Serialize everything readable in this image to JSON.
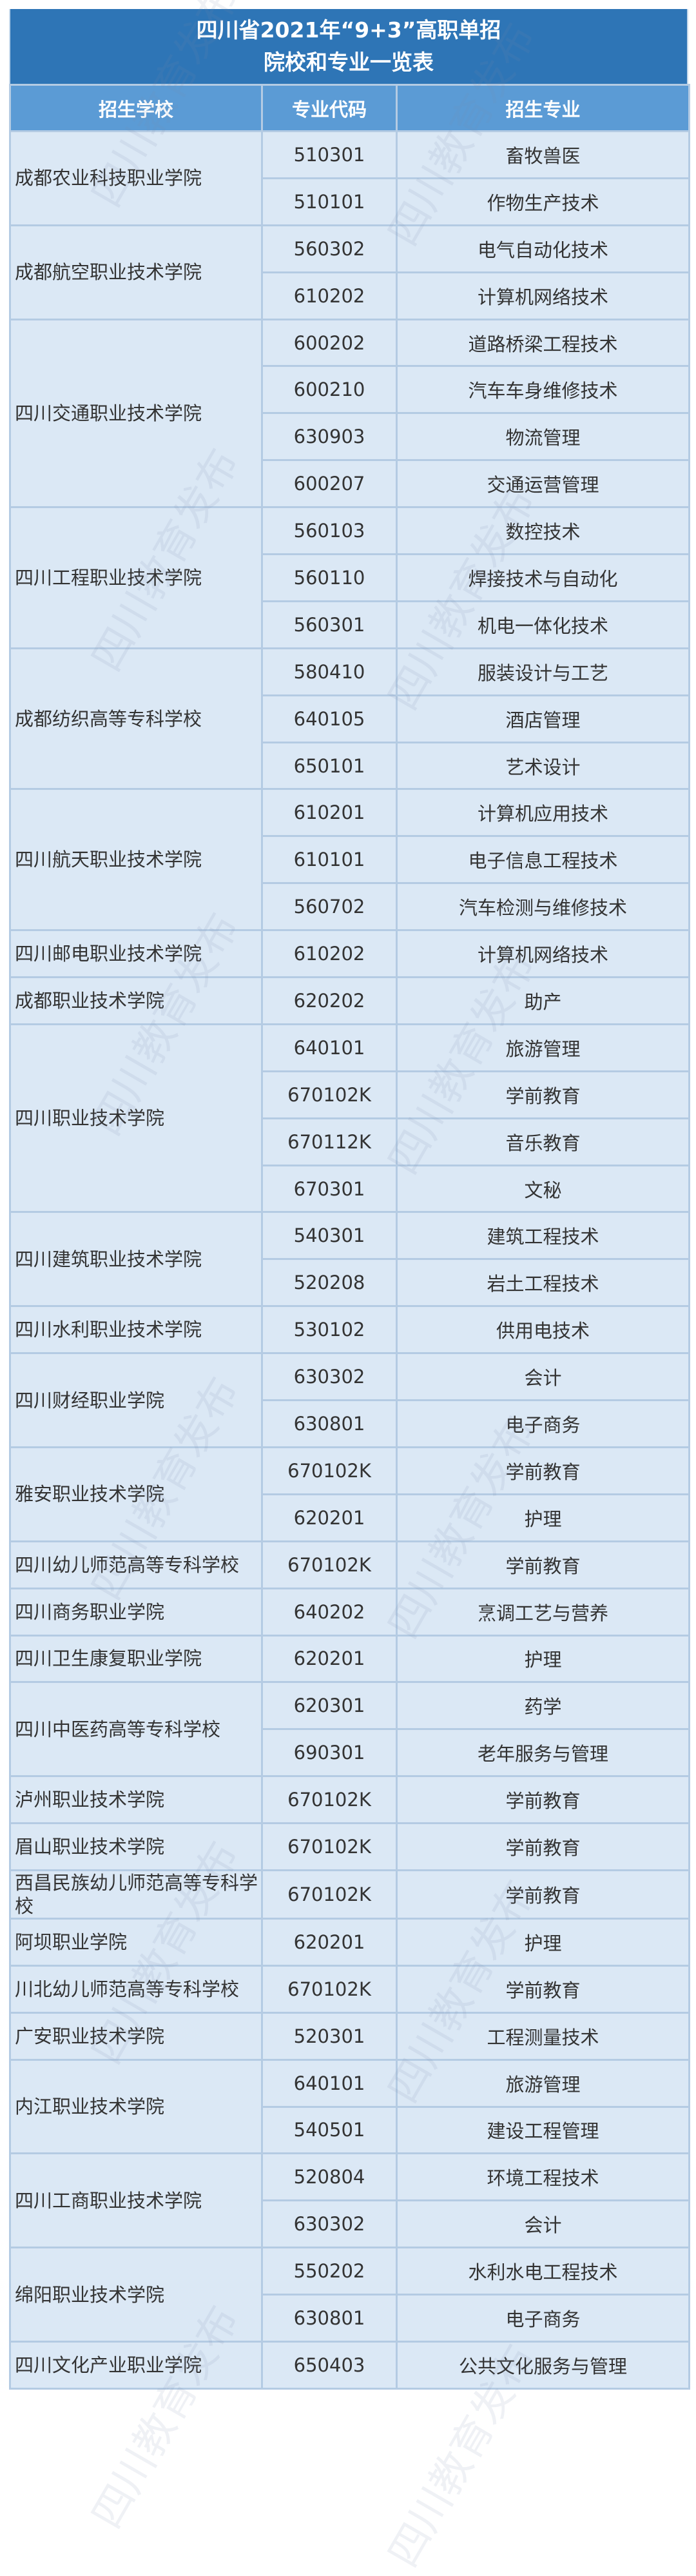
{
  "title": {
    "line1": "四川省2021年“9+3”高职单招",
    "line2": "院校和专业一览表"
  },
  "columns": [
    "招生学校",
    "专业代码",
    "招生专业"
  ],
  "watermark": "四川教育发布",
  "schools": [
    {
      "name": "成都农业科技职业学院",
      "majors": [
        [
          "510301",
          "畜牧兽医"
        ],
        [
          "510101",
          "作物生产技术"
        ]
      ]
    },
    {
      "name": "成都航空职业技术学院",
      "majors": [
        [
          "560302",
          "电气自动化技术"
        ],
        [
          "610202",
          "计算机网络技术"
        ]
      ]
    },
    {
      "name": "四川交通职业技术学院",
      "majors": [
        [
          "600202",
          "道路桥梁工程技术"
        ],
        [
          "600210",
          "汽车车身维修技术"
        ],
        [
          "630903",
          "物流管理"
        ],
        [
          "600207",
          "交通运营管理"
        ]
      ]
    },
    {
      "name": "四川工程职业技术学院",
      "majors": [
        [
          "560103",
          "数控技术"
        ],
        [
          "560110",
          "焊接技术与自动化"
        ],
        [
          "560301",
          "机电一体化技术"
        ]
      ]
    },
    {
      "name": "成都纺织高等专科学校",
      "majors": [
        [
          "580410",
          "服装设计与工艺"
        ],
        [
          "640105",
          "酒店管理"
        ],
        [
          "650101",
          "艺术设计"
        ]
      ]
    },
    {
      "name": "四川航天职业技术学院",
      "majors": [
        [
          "610201",
          "计算机应用技术"
        ],
        [
          "610101",
          "电子信息工程技术"
        ],
        [
          "560702",
          "汽车检测与维修技术"
        ]
      ]
    },
    {
      "name": "四川邮电职业技术学院",
      "majors": [
        [
          "610202",
          "计算机网络技术"
        ]
      ]
    },
    {
      "name": "成都职业技术学院",
      "majors": [
        [
          "620202",
          "助产"
        ]
      ]
    },
    {
      "name": "四川职业技术学院",
      "majors": [
        [
          "640101",
          "旅游管理"
        ],
        [
          "670102K",
          "学前教育"
        ],
        [
          "670112K",
          "音乐教育"
        ],
        [
          "670301",
          "文秘"
        ]
      ]
    },
    {
      "name": "四川建筑职业技术学院",
      "majors": [
        [
          "540301",
          "建筑工程技术"
        ],
        [
          "520208",
          "岩土工程技术"
        ]
      ]
    },
    {
      "name": "四川水利职业技术学院",
      "majors": [
        [
          "530102",
          "供用电技术"
        ]
      ]
    },
    {
      "name": "四川财经职业学院",
      "majors": [
        [
          "630302",
          "会计"
        ],
        [
          "630801",
          "电子商务"
        ]
      ]
    },
    {
      "name": "雅安职业技术学院",
      "majors": [
        [
          "670102K",
          "学前教育"
        ],
        [
          "620201",
          "护理"
        ]
      ]
    },
    {
      "name": "四川幼儿师范高等专科学校",
      "majors": [
        [
          "670102K",
          "学前教育"
        ]
      ]
    },
    {
      "name": "四川商务职业学院",
      "majors": [
        [
          "640202",
          "烹调工艺与营养"
        ]
      ]
    },
    {
      "name": "四川卫生康复职业学院",
      "majors": [
        [
          "620201",
          "护理"
        ]
      ]
    },
    {
      "name": "四川中医药高等专科学校",
      "majors": [
        [
          "620301",
          "药学"
        ],
        [
          "690301",
          "老年服务与管理"
        ]
      ]
    },
    {
      "name": "泸州职业技术学院",
      "majors": [
        [
          "670102K",
          "学前教育"
        ]
      ]
    },
    {
      "name": "眉山职业技术学院",
      "majors": [
        [
          "670102K",
          "学前教育"
        ]
      ]
    },
    {
      "name": "西昌民族幼儿师范高等专科学校",
      "majors": [
        [
          "670102K",
          "学前教育"
        ]
      ]
    },
    {
      "name": "阿坝职业学院",
      "majors": [
        [
          "620201",
          "护理"
        ]
      ]
    },
    {
      "name": "川北幼儿师范高等专科学校",
      "majors": [
        [
          "670102K",
          "学前教育"
        ]
      ]
    },
    {
      "name": "广安职业技术学院",
      "majors": [
        [
          "520301",
          "工程测量技术"
        ]
      ]
    },
    {
      "name": "内江职业技术学院",
      "majors": [
        [
          "640101",
          "旅游管理"
        ],
        [
          "540501",
          "建设工程管理"
        ]
      ]
    },
    {
      "name": "四川工商职业技术学院",
      "majors": [
        [
          "520804",
          "环境工程技术"
        ],
        [
          "630302",
          "会计"
        ]
      ]
    },
    {
      "name": "绵阳职业技术学院",
      "majors": [
        [
          "550202",
          "水利水电工程技术"
        ],
        [
          "630801",
          "电子商务"
        ]
      ]
    },
    {
      "name": "四川文化产业职业学院",
      "majors": [
        [
          "650403",
          "公共文化服务与管理"
        ]
      ]
    }
  ]
}
